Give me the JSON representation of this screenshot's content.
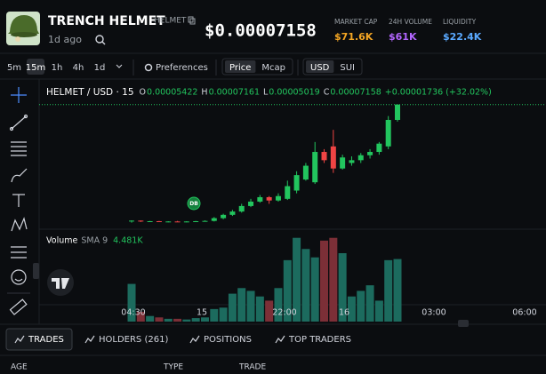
{
  "token": {
    "name": "TRENCH HELMET",
    "ticker": "HELMET",
    "age": "1d ago",
    "price": "$0.00007158"
  },
  "stats": [
    {
      "label": "MARKET CAP",
      "value": "$71.6K",
      "color": "#f5a623"
    },
    {
      "label": "24H VOLUME",
      "value": "$61K",
      "color": "#b366ff"
    },
    {
      "label": "LIQUIDITY",
      "value": "$22.4K",
      "color": "#5aa9ff"
    }
  ],
  "toolbar": {
    "intervals": [
      "5m",
      "15m",
      "1h",
      "4h",
      "1d"
    ],
    "active_interval": 1,
    "preferences": "Preferences",
    "price_toggle": [
      "Price",
      "Mcap"
    ],
    "currency_toggle": [
      "USD",
      "SUI"
    ]
  },
  "chart": {
    "symbol": "HELMET / USD · 15",
    "ohlc": [
      {
        "label": "O",
        "value": "0.00005422"
      },
      {
        "label": "H",
        "value": "0.00007161"
      },
      {
        "label": "L",
        "value": "0.00005019"
      },
      {
        "label": "C",
        "value": "0.00007158"
      }
    ],
    "change": "+0.00001736 (+32.02%)",
    "marker": "DB",
    "volume_label": "Volume",
    "volume_sma": "SMA 9",
    "volume_value": "4.481K",
    "time_labels": [
      "04:30",
      "15",
      "22:00",
      "16",
      "03:00",
      "06:00"
    ],
    "up_color": "#22c55e",
    "down_color": "#ef4444",
    "ylim": [
      4.9e-05,
      7.25e-05
    ],
    "candles": [
      [
        5.042e-05,
        5.06e-05,
        5.019e-05,
        5.055e-05
      ],
      [
        5.055e-05,
        5.06e-05,
        5.03e-05,
        5.04e-05
      ],
      [
        5.04e-05,
        5.05e-05,
        5.03e-05,
        5.045e-05
      ],
      [
        5.045e-05,
        5.05e-05,
        5.03e-05,
        5.035e-05
      ],
      [
        5.035e-05,
        5.045e-05,
        5.025e-05,
        5.04e-05
      ],
      [
        5.04e-05,
        5.05e-05,
        5.03e-05,
        5.032e-05
      ],
      [
        5.032e-05,
        5.045e-05,
        5.025e-05,
        5.04e-05
      ],
      [
        5.04e-05,
        5.05e-05,
        5.03e-05,
        5.045e-05
      ],
      [
        5.045e-05,
        5.06e-05,
        5.04e-05,
        5.05e-05
      ],
      [
        5.05e-05,
        5.12e-05,
        5.04e-05,
        5.1e-05
      ],
      [
        5.1e-05,
        5.18e-05,
        5.08e-05,
        5.16e-05
      ],
      [
        5.16e-05,
        5.25e-05,
        5.14e-05,
        5.22e-05
      ],
      [
        5.22e-05,
        5.36e-05,
        5.2e-05,
        5.32e-05
      ],
      [
        5.32e-05,
        5.45e-05,
        5.3e-05,
        5.4e-05
      ],
      [
        5.4e-05,
        5.52e-05,
        5.38e-05,
        5.48e-05
      ],
      [
        5.48e-05,
        5.5e-05,
        5.36e-05,
        5.42e-05
      ],
      [
        5.42e-05,
        5.55e-05,
        5.4e-05,
        5.5e-05
      ],
      [
        5.45e-05,
        5.78e-05,
        5.43e-05,
        5.68e-05
      ],
      [
        5.6e-05,
        5.95e-05,
        5.55e-05,
        5.88e-05
      ],
      [
        5.8e-05,
        6.1e-05,
        5.78e-05,
        6.05e-05
      ],
      [
        5.75e-05,
        6.48e-05,
        5.72e-05,
        6.3e-05
      ],
      [
        6.3e-05,
        6.35e-05,
        6.1e-05,
        6.15e-05
      ],
      [
        6.4e-05,
        6.7e-05,
        5.92e-05,
        6e-05
      ],
      [
        6e-05,
        6.25e-05,
        5.98e-05,
        6.2e-05
      ],
      [
        6.1e-05,
        6.22e-05,
        6.05e-05,
        6.15e-05
      ],
      [
        6.15e-05,
        6.28e-05,
        6.1e-05,
        6.24e-05
      ],
      [
        6.24e-05,
        6.35e-05,
        6.18e-05,
        6.3e-05
      ],
      [
        6.3e-05,
        6.48e-05,
        6.25e-05,
        6.45e-05
      ],
      [
        6.4e-05,
        6.95e-05,
        6.35e-05,
        6.88e-05
      ],
      [
        6.88e-05,
        7.161e-05,
        6.85e-05,
        7.158e-05
      ]
    ],
    "volume_ylim": [
      0,
      6300
    ],
    "volume": [
      2700,
      700,
      400,
      300,
      200,
      200,
      150,
      250,
      300,
      900,
      1000,
      2000,
      2400,
      2200,
      1800,
      1500,
      2400,
      4400,
      6000,
      5200,
      4600,
      5800,
      6000,
      4900,
      1800,
      2200,
      2600,
      1500,
      4400,
      4481
    ]
  },
  "tabs": [
    "TRADES",
    "HOLDERS (261)",
    "POSITIONS",
    "TOP TRADERS"
  ],
  "table_headers": [
    "AGE",
    "TYPE",
    "TRADE"
  ]
}
